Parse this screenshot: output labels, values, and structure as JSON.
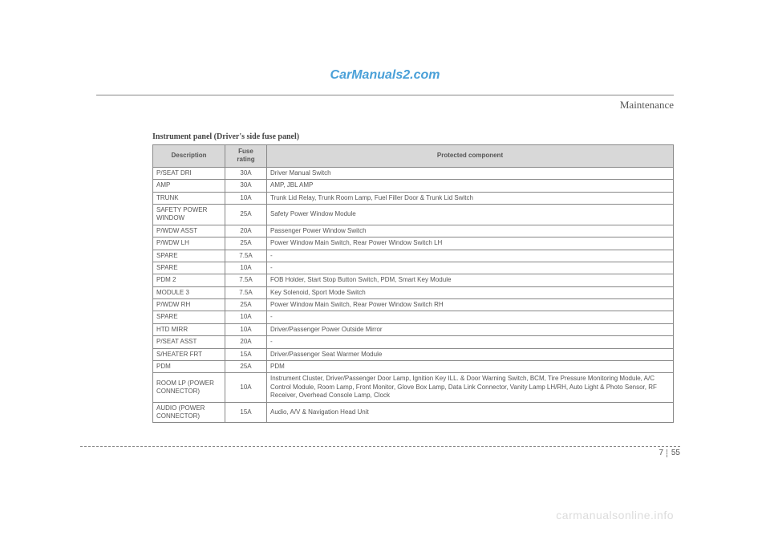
{
  "watermark_top": "CarManuals2.com",
  "header": {
    "section": "Maintenance"
  },
  "table": {
    "title": "Instrument panel (Driver's side fuse panel)",
    "columns": [
      "Description",
      "Fuse rating",
      "Protected component"
    ],
    "rows": [
      [
        "P/SEAT DRI",
        "30A",
        "Driver Manual Switch"
      ],
      [
        "AMP",
        "30A",
        "AMP, JBL AMP"
      ],
      [
        "TRUNK",
        "10A",
        "Trunk Lid Relay, Trunk Room Lamp, Fuel Filler Door & Trunk Lid Switch"
      ],
      [
        "SAFETY POWER WINDOW",
        "25A",
        "Safety Power Window Module"
      ],
      [
        "P/WDW ASST",
        "20A",
        "Passenger Power Window Switch"
      ],
      [
        "P/WDW LH",
        "25A",
        "Power Window Main Switch, Rear Power Window Switch LH"
      ],
      [
        "SPARE",
        "7.5A",
        "-"
      ],
      [
        "SPARE",
        "10A",
        "-"
      ],
      [
        "PDM 2",
        "7.5A",
        "FOB Holder, Start Stop Button Switch, PDM, Smart Key Module"
      ],
      [
        "MODULE 3",
        "7.5A",
        "Key Solenoid, Sport Mode Switch"
      ],
      [
        "P/WDW RH",
        "25A",
        "Power Window Main Switch, Rear Power Window Switch RH"
      ],
      [
        "SPARE",
        "10A",
        "-"
      ],
      [
        "HTD MIRR",
        "10A",
        "Driver/Passenger Power Outside Mirror"
      ],
      [
        "P/SEAT ASST",
        "20A",
        "-"
      ],
      [
        "S/HEATER FRT",
        "15A",
        "Driver/Passenger Seat Warmer Module"
      ],
      [
        "PDM",
        "25A",
        "PDM"
      ],
      [
        "ROOM LP (POWER CONNECTOR)",
        "10A",
        "Instrument Cluster, Driver/Passenger Door Lamp, Ignition Key ILL. & Door Warning Switch, BCM, Tire Pressure Monitoring Module, A/C Control Module, Room Lamp, Front Monitor, Glove Box Lamp, Data Link Connector, Vanity Lamp LH/RH, Auto Light & Photo Sensor, RF Receiver, Overhead Console Lamp, Clock"
      ],
      [
        "AUDIO (POWER CONNECTOR)",
        "15A",
        "Audio, A/V & Navigation Head Unit"
      ]
    ]
  },
  "footer": {
    "chapter": "7",
    "page": "55"
  },
  "watermark_bottom": "carmanualsonline.info"
}
